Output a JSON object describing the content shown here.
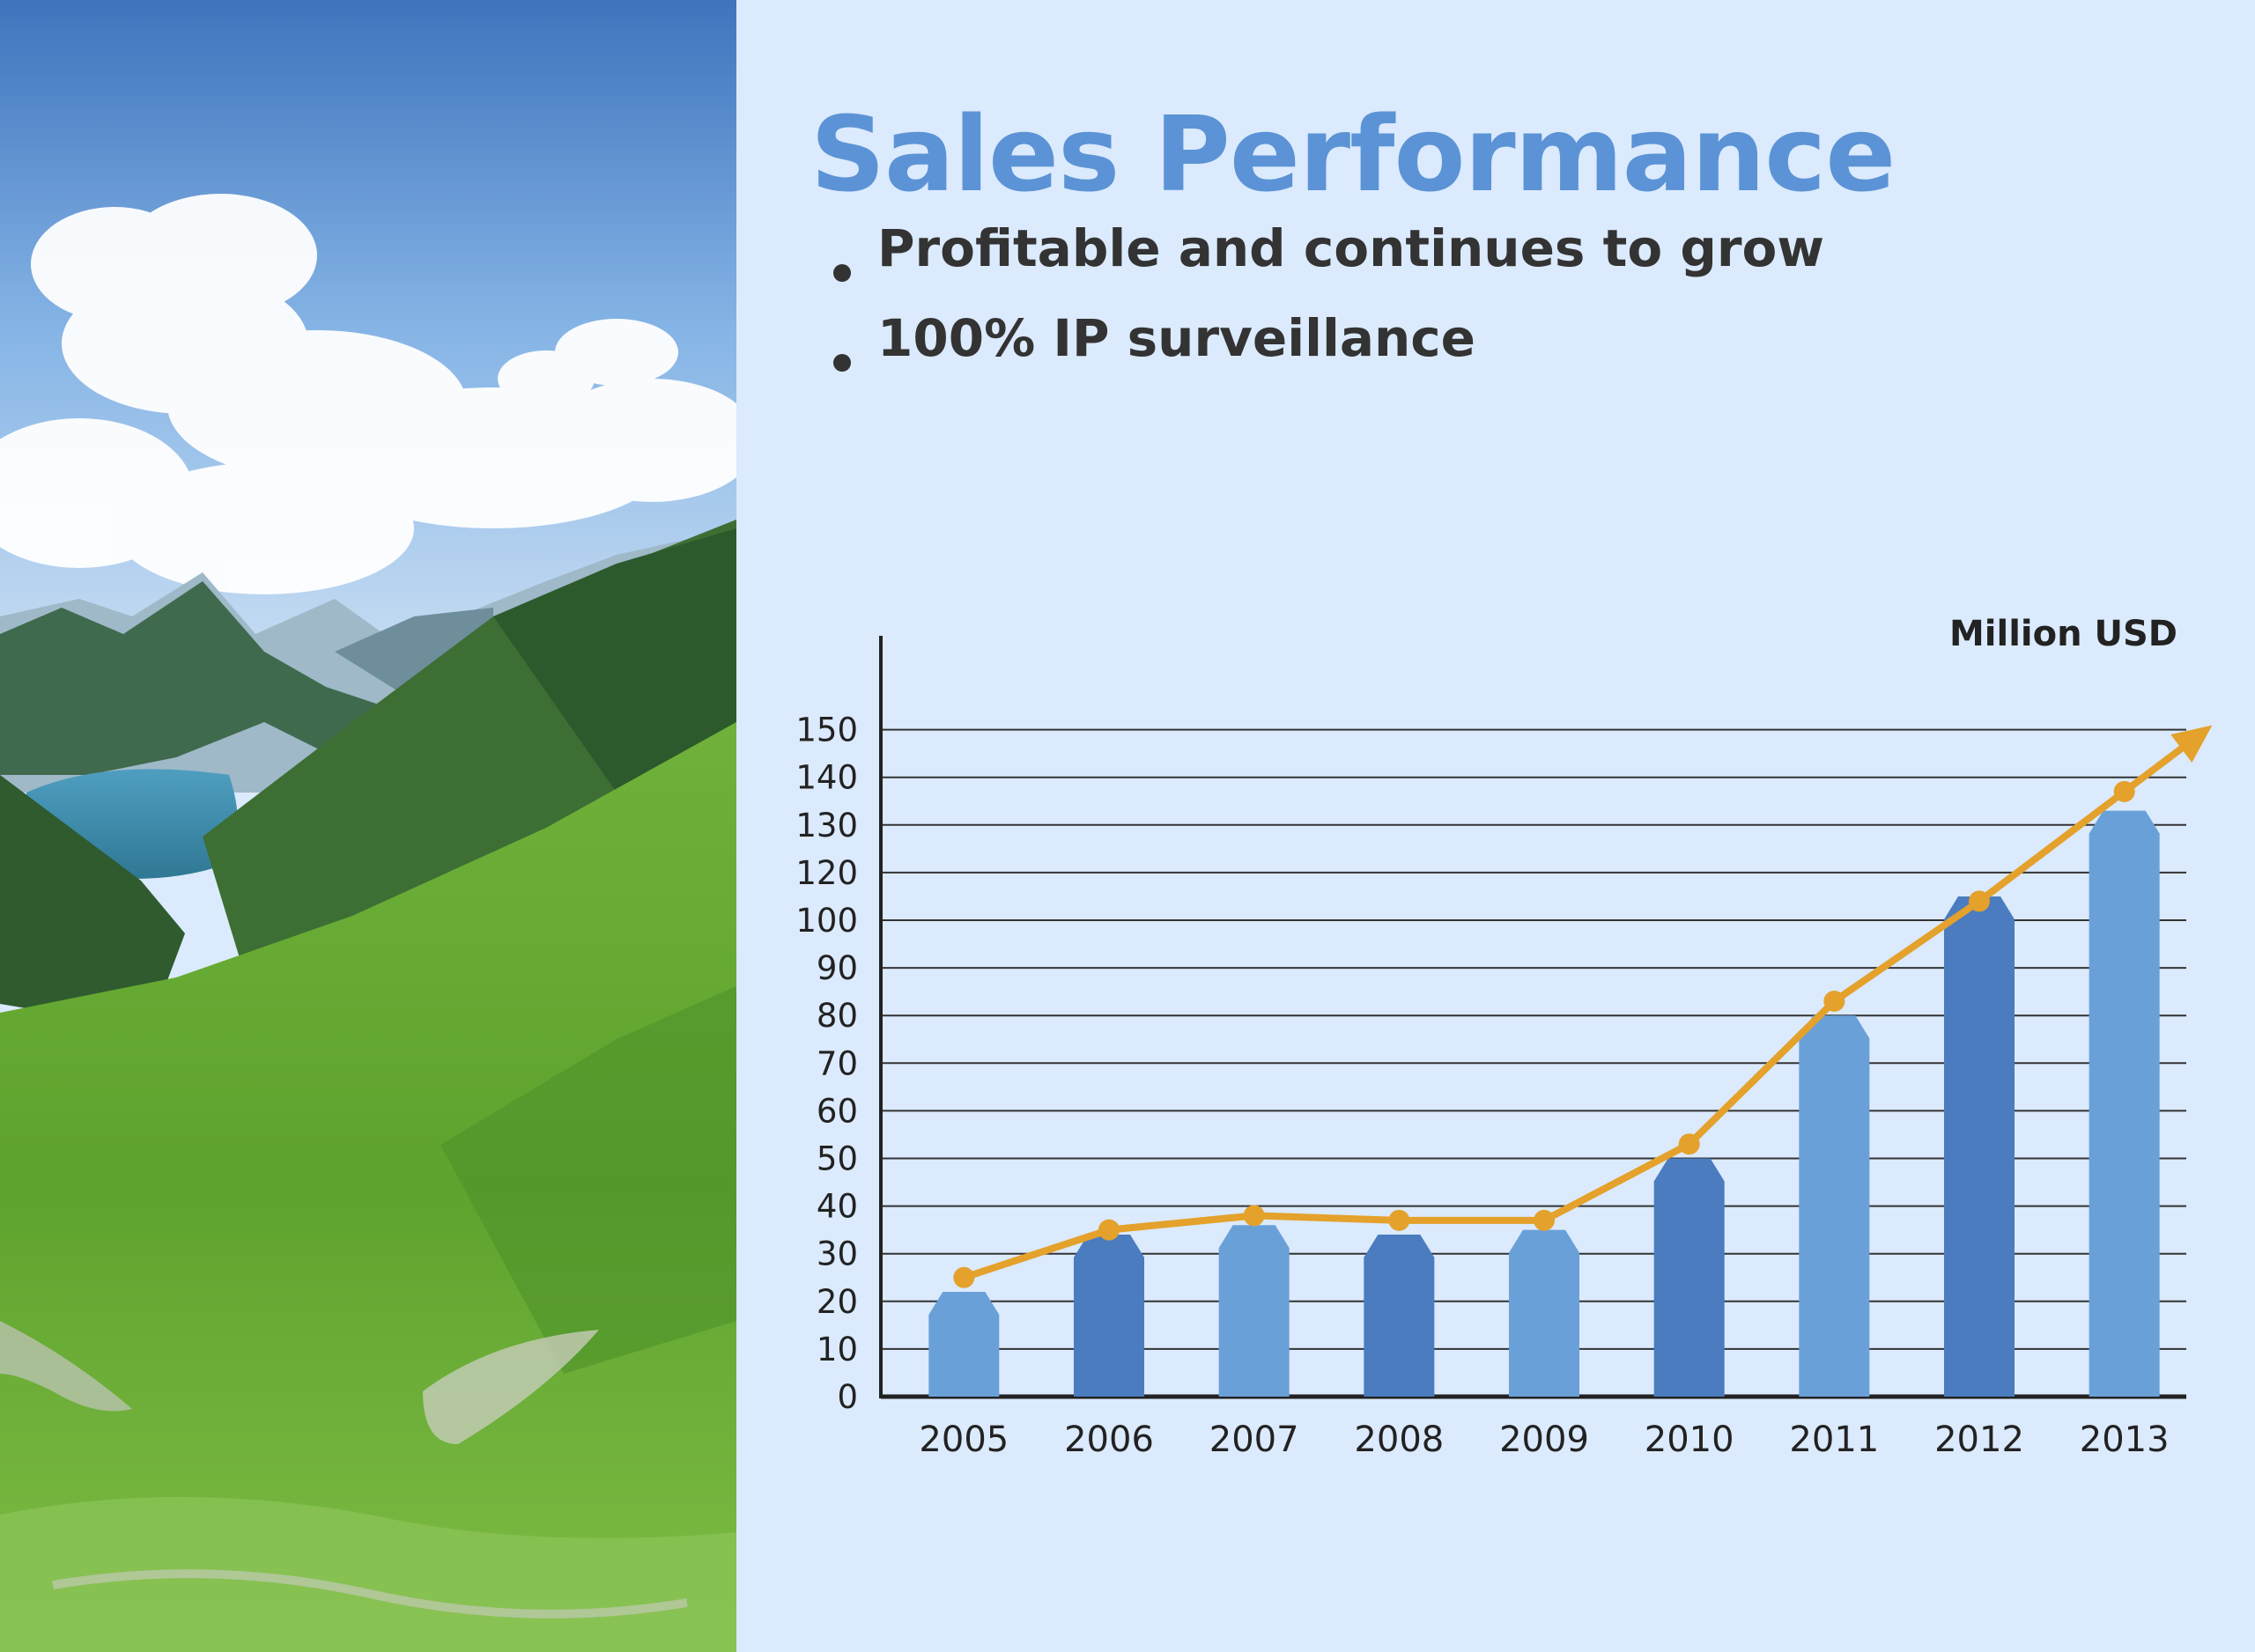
{
  "slide": {
    "title": "Sales Performance",
    "bullets": [
      "Profitable and continues to grow",
      "100% IP surveillance"
    ]
  },
  "colors": {
    "background": "#dbeafc",
    "title": "#5b93d6",
    "bar_light": "#6aa0d8",
    "bar_dark": "#4a7cbf",
    "trend_line": "#e4a12b",
    "text": "#333333"
  },
  "chart_data": {
    "type": "bar",
    "unit_label": "Million USD",
    "categories": [
      "2005",
      "2006",
      "2007",
      "2008",
      "2009",
      "2010",
      "2011",
      "2012",
      "2013"
    ],
    "values": [
      22,
      34,
      36,
      34,
      35,
      50,
      80,
      110,
      133
    ],
    "trend_line": [
      25,
      35,
      38,
      37,
      37,
      53,
      83,
      108,
      137
    ],
    "y_ticks": [
      "0",
      "10",
      "20",
      "30",
      "40",
      "50",
      "60",
      "70",
      "80",
      "90",
      "100",
      "120",
      "130",
      "140",
      "150"
    ],
    "grid": true,
    "trend_arrow": true
  }
}
